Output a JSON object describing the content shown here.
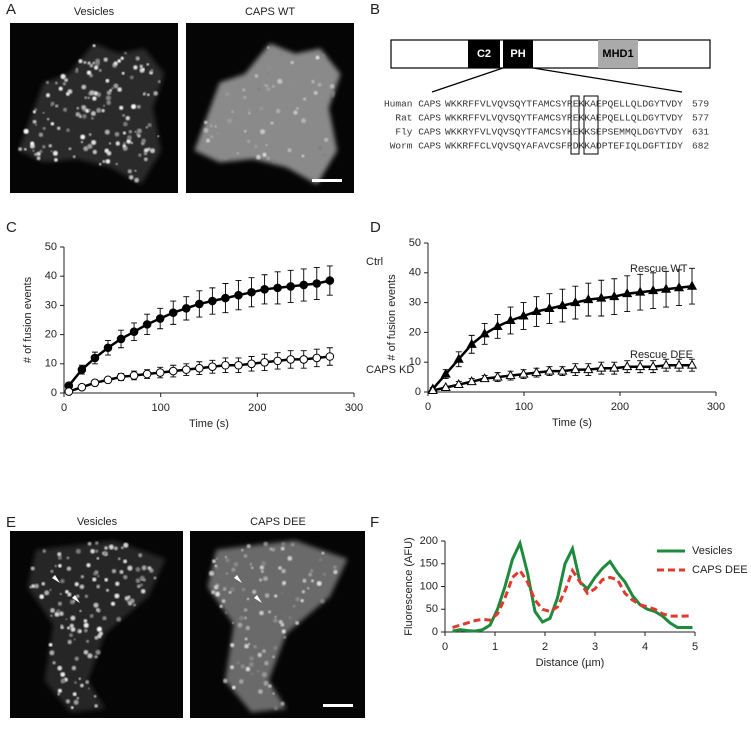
{
  "panel_labels": [
    "A",
    "B",
    "C",
    "D",
    "E",
    "F"
  ],
  "panel_a": {
    "image_titles": [
      "Vesicles",
      "CAPS WT"
    ]
  },
  "panel_b": {
    "domains": [
      "C2",
      "PH",
      "MHD1"
    ],
    "alignment": [
      {
        "species": "Human CAPS",
        "sequence": "WKKRFFVLVQVSQYTFAMCSYREKKAEPQELLQLDGYTVDY",
        "position": 579
      },
      {
        "species": "Rat CAPS",
        "sequence": "WKKRFFVLVQVSQYTFAMCSYREKKAEPQELLQLDGYTVDY",
        "position": 577
      },
      {
        "species": "Fly CAPS",
        "sequence": "WKKRYFVLVQVSQYTFAMCSYKEKKSEPSEMMQLDGYTVDY",
        "position": 631
      },
      {
        "species": "Worm CAPS",
        "sequence": "WKKRFFCLVQVSQYAFAVCSFRDKKADPTEFIQLDGFTIDY",
        "position": 682
      }
    ]
  },
  "panel_e": {
    "image_titles": [
      "Vesicles",
      "CAPS DEE"
    ]
  },
  "chart_data": [
    {
      "type": "line",
      "xlabel": "Time (s)",
      "ylabel": "# of fusion events",
      "x": [
        5,
        18.5,
        32,
        45.5,
        59,
        72.5,
        86,
        99.5,
        113,
        126.5,
        140,
        153.5,
        167,
        180.5,
        194,
        207.5,
        221,
        234.5,
        248,
        261.5,
        275
      ],
      "xlim": [
        0,
        300
      ],
      "xticks": [
        0,
        100,
        200,
        300
      ],
      "ylim": [
        0,
        50
      ],
      "yticks": [
        0,
        10,
        20,
        30,
        40,
        50
      ],
      "series": [
        {
          "name": "Ctrl",
          "color": "#000000",
          "marker": "circle",
          "marker_filled": true,
          "values": [
            2.5,
            8,
            12,
            15.5,
            18.5,
            21,
            23.5,
            25.5,
            27.5,
            29,
            30.5,
            31.5,
            32.5,
            33.5,
            34.5,
            35.5,
            36,
            36.5,
            37,
            37.5,
            38.5
          ],
          "errors": [
            1,
            1.5,
            2,
            2.5,
            3,
            3,
            3.5,
            3.5,
            4,
            4,
            4.5,
            4.5,
            5,
            5,
            5,
            5,
            5.5,
            5.5,
            5.5,
            5.5,
            5
          ]
        },
        {
          "name": "CAPS KD",
          "color": "#000000",
          "marker": "circle",
          "marker_filled": false,
          "values": [
            0.5,
            2,
            3.5,
            4.5,
            5.5,
            6,
            6.5,
            7,
            7.5,
            8,
            8.5,
            9,
            9.5,
            9.5,
            10,
            10.5,
            11,
            11.5,
            11.5,
            12,
            12.5
          ],
          "errors": [
            0.5,
            0.8,
            1,
            1,
            1.2,
            1.5,
            1.5,
            1.8,
            2,
            2,
            2.2,
            2.2,
            2.5,
            2.5,
            2.5,
            2.8,
            2.8,
            3,
            3,
            3,
            3
          ]
        }
      ]
    },
    {
      "type": "line",
      "xlabel": "Time (s)",
      "ylabel": "# of fusion events",
      "x": [
        5,
        18.5,
        32,
        45.5,
        59,
        72.5,
        86,
        99.5,
        113,
        126.5,
        140,
        153.5,
        167,
        180.5,
        194,
        207.5,
        221,
        234.5,
        248,
        261.5,
        275
      ],
      "xlim": [
        0,
        300
      ],
      "xticks": [
        0,
        100,
        200,
        300
      ],
      "ylim": [
        0,
        50
      ],
      "yticks": [
        0,
        10,
        20,
        30,
        40,
        50
      ],
      "series": [
        {
          "name": "Rescue WT",
          "color": "#000000",
          "marker": "triangle",
          "marker_filled": true,
          "values": [
            1,
            6,
            11,
            16,
            19.5,
            22,
            24,
            25.5,
            27,
            28,
            29,
            30,
            31,
            31.5,
            32,
            33,
            33.5,
            34,
            34.5,
            35,
            35.5
          ],
          "errors": [
            0.5,
            1.5,
            2.5,
            3,
            3.5,
            4,
            4.5,
            4.5,
            5,
            5,
            5.5,
            5.5,
            5.5,
            6,
            6,
            6,
            6,
            6,
            6,
            6,
            6
          ]
        },
        {
          "name": "Rescue DEE",
          "color": "#000000",
          "marker": "triangle",
          "marker_filled": false,
          "values": [
            0.5,
            1.5,
            2.5,
            3.5,
            4.5,
            5,
            5.5,
            6,
            6.5,
            7,
            7,
            7.5,
            7.5,
            8,
            8,
            8.5,
            8.5,
            8.5,
            9,
            9,
            9
          ],
          "errors": [
            0.5,
            0.5,
            1,
            1,
            1,
            1.5,
            1.5,
            1.5,
            1.5,
            1.5,
            1.5,
            2,
            2,
            2,
            2,
            2,
            2,
            2,
            2,
            2,
            2
          ]
        }
      ]
    },
    {
      "type": "line",
      "xlabel": "Distance (µm)",
      "ylabel": "Fluorescence (AFU)",
      "legend": "upper right",
      "x": [
        0.15,
        0.3,
        0.45,
        0.6,
        0.75,
        0.9,
        1.05,
        1.2,
        1.35,
        1.5,
        1.65,
        1.8,
        1.95,
        2.1,
        2.25,
        2.4,
        2.55,
        2.7,
        2.85,
        3.0,
        3.15,
        3.3,
        3.45,
        3.6,
        3.75,
        3.9,
        4.05,
        4.2,
        4.35,
        4.5,
        4.65,
        4.8,
        4.95
      ],
      "xlim": [
        0,
        5
      ],
      "xticks": [
        0,
        1,
        2,
        3,
        4,
        5
      ],
      "ylim": [
        0,
        200
      ],
      "yticks": [
        0,
        50,
        100,
        150,
        200
      ],
      "series": [
        {
          "name": "Vesicles",
          "color": "#1e8a3c",
          "dashed": false,
          "values": [
            2,
            5,
            3,
            2,
            5,
            15,
            50,
            100,
            160,
            195,
            130,
            45,
            22,
            30,
            75,
            150,
            183,
            110,
            95,
            120,
            140,
            155,
            130,
            110,
            80,
            60,
            50,
            45,
            35,
            20,
            10,
            10,
            10
          ]
        },
        {
          "name": "CAPS DEE",
          "color": "#e03a2f",
          "dashed": true,
          "values": [
            10,
            15,
            20,
            25,
            28,
            26,
            40,
            75,
            120,
            135,
            110,
            70,
            50,
            45,
            55,
            90,
            135,
            110,
            85,
            95,
            115,
            120,
            115,
            85,
            70,
            60,
            55,
            50,
            40,
            35,
            35,
            35,
            36
          ]
        }
      ]
    }
  ]
}
